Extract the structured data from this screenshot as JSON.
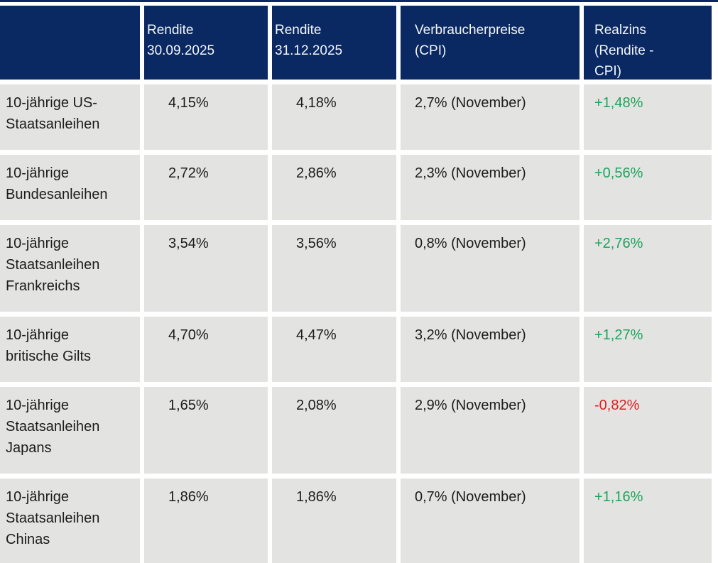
{
  "chart_data": {
    "type": "table",
    "columns": [
      {
        "header": "",
        "header_display": ""
      },
      {
        "header": "Rendite 30.09.2025",
        "header_display": "Rendite\n30.09.2025"
      },
      {
        "header": "Rendite 31.12.2025",
        "header_display": "Rendite\n31.12.2025"
      },
      {
        "header": "Verbraucherpreise (CPI)",
        "header_display": "Verbraucherpreise\n(CPI)"
      },
      {
        "header": "Realzins (Rendite - CPI)",
        "header_display": "Realzins\n(Rendite -\nCPI)"
      }
    ],
    "rows": [
      {
        "label": "10-jährige US-Staatsanleihen",
        "label_display": "10-jährige US-\nStaatsanleihen",
        "rendite_30_09_2025": "4,15%",
        "rendite_31_12_2025": "4,18%",
        "verbraucherpreise_cpi": "2,7% (November)",
        "realzins": "+1,48%",
        "realzins_trend": "positive"
      },
      {
        "label": "10-jährige Bundesanleihen",
        "label_display": "10-jährige\nBundesanleihen",
        "rendite_30_09_2025": "2,72%",
        "rendite_31_12_2025": "2,86%",
        "verbraucherpreise_cpi": "2,3% (November)",
        "realzins": "+0,56%",
        "realzins_trend": "positive"
      },
      {
        "label": "10-jährige Staatsanleihen Frankreichs",
        "label_display": "10-jährige\nStaatsanleihen\nFrankreichs",
        "rendite_30_09_2025": "3,54%",
        "rendite_31_12_2025": "3,56%",
        "verbraucherpreise_cpi": "0,8% (November)",
        "realzins": "+2,76%",
        "realzins_trend": "positive"
      },
      {
        "label": "10-jährige britische Gilts",
        "label_display": "10-jährige\nbritische Gilts",
        "rendite_30_09_2025": "4,70%",
        "rendite_31_12_2025": "4,47%",
        "verbraucherpreise_cpi": "3,2% (November)",
        "realzins": "+1,27%",
        "realzins_trend": "positive"
      },
      {
        "label": "10-jährige Staatsanleihen Japans",
        "label_display": "10-jährige\nStaatsanleihen\nJapans",
        "rendite_30_09_2025": "1,65%",
        "rendite_31_12_2025": "2,08%",
        "verbraucherpreise_cpi": "2,9% (November)",
        "realzins": "-0,82%",
        "realzins_trend": "negative"
      },
      {
        "label": "10-jährige Staatsanleihen Chinas",
        "label_display": "10-jährige\nStaatsanleihen\nChinas",
        "rendite_30_09_2025": "1,86%",
        "rendite_31_12_2025": "1,86%",
        "verbraucherpreise_cpi": "0,7% (November)",
        "realzins": "+1,16%",
        "realzins_trend": "positive"
      }
    ]
  },
  "colors": {
    "header_background": "#0A2963",
    "header_text": "#F3F6F9",
    "row_background": "#E3E3E1",
    "body_text": "#1C1C1A",
    "positive": "#1CA45C",
    "negative": "#DD2020",
    "gap": "#FFFFFF"
  }
}
